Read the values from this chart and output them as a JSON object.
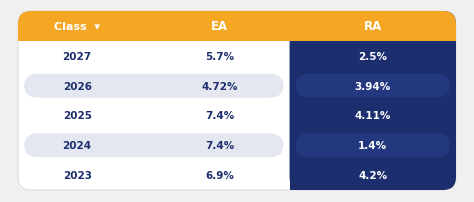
{
  "headers": [
    "Class  ▾",
    "EA",
    "RA"
  ],
  "rows": [
    {
      "class": "2027",
      "ea": "5.7%",
      "ra": "2.5%"
    },
    {
      "class": "2026",
      "ea": "4.72%",
      "ra": "3.94%"
    },
    {
      "class": "2025",
      "ea": "7.4%",
      "ra": "4.11%"
    },
    {
      "class": "2024",
      "ea": "7.4%",
      "ra": "1.4%"
    },
    {
      "class": "2023",
      "ea": "6.9%",
      "ra": "4.2%"
    }
  ],
  "header_bg": "#F5A623",
  "header_text": "#ffffff",
  "ra_panel_bg": "#1C2E6E",
  "ra_alt_stripe": "#243880",
  "row_alt_bg": "#E4E6F0",
  "outer_bg": "#f0f0f0",
  "table_bg": "#ffffff",
  "text_dark": "#1C2E6E",
  "text_white": "#ffffff",
  "border_color": "#dddddd",
  "figsize": [
    4.74,
    2.03
  ],
  "dpi": 100
}
